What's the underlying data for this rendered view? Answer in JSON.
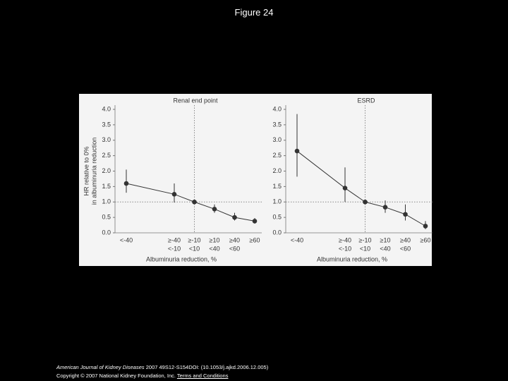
{
  "title": "Figure 24",
  "chart_data": [
    {
      "type": "line",
      "title": "Renal end point",
      "ylabel": [
        "HR relative to 0%",
        "in albuminuria reduction"
      ],
      "xlabel": "Albuminuria reduction, %",
      "categories": [
        [
          "<-40"
        ],
        [
          "≥-40",
          "<-10"
        ],
        [
          "≥-10",
          "<10"
        ],
        [
          "≥10",
          "<40"
        ],
        [
          "≥40",
          "<60"
        ],
        [
          "≥60"
        ]
      ],
      "values": [
        1.6,
        1.25,
        1.0,
        0.77,
        0.5,
        0.38
      ],
      "ci_low": [
        1.3,
        0.98,
        null,
        0.65,
        0.4,
        0.3
      ],
      "ci_high": [
        2.05,
        1.6,
        null,
        0.92,
        0.65,
        0.48
      ],
      "color": "#333333",
      "reference_y": 1,
      "ylim": [
        0,
        4
      ],
      "yticks": [
        {
          "value": 0,
          "label": "0.0"
        },
        0.5,
        {
          "value": 1,
          "label": "1.0"
        },
        1.5,
        {
          "value": 2,
          "label": "2.0"
        },
        2.5,
        {
          "value": 3,
          "label": "3.0"
        },
        3.5,
        {
          "value": 4,
          "label": "4.0"
        }
      ]
    },
    {
      "type": "line",
      "title": "ESRD",
      "xlabel": "Albuminuria reduction, %",
      "categories": [
        [
          "<-40"
        ],
        [
          "≥-40",
          "<-10"
        ],
        [
          "≥-10",
          "<10"
        ],
        [
          "≥10",
          "<40"
        ],
        [
          "≥40",
          "<60"
        ],
        [
          "≥60"
        ]
      ],
      "values": [
        2.65,
        1.45,
        1.0,
        0.83,
        0.6,
        0.22
      ],
      "ci_low": [
        1.82,
        1.0,
        null,
        0.65,
        0.4,
        0.12
      ],
      "ci_high": [
        3.85,
        2.12,
        null,
        1.05,
        0.92,
        0.38
      ],
      "color": "#333333",
      "reference_y": 1,
      "ylim": [
        0,
        4
      ],
      "yticks": [
        {
          "value": 0,
          "label": "0.0"
        },
        0.5,
        {
          "value": 1,
          "label": "1.0"
        },
        1.5,
        {
          "value": 2,
          "label": "2.0"
        },
        2.5,
        {
          "value": 3,
          "label": "3.0"
        },
        3.5,
        {
          "value": 4,
          "label": "4.0"
        }
      ]
    }
  ],
  "footer": {
    "journal": "American Journal of Kidney Diseases",
    "citation": " 2007 49S12-S154DOI: (10.1053/j.ajkd.2006.12.005)",
    "copyright": "Copyright © 2007 National Kidney Foundation, Inc.",
    "link": "Terms and Conditions"
  }
}
